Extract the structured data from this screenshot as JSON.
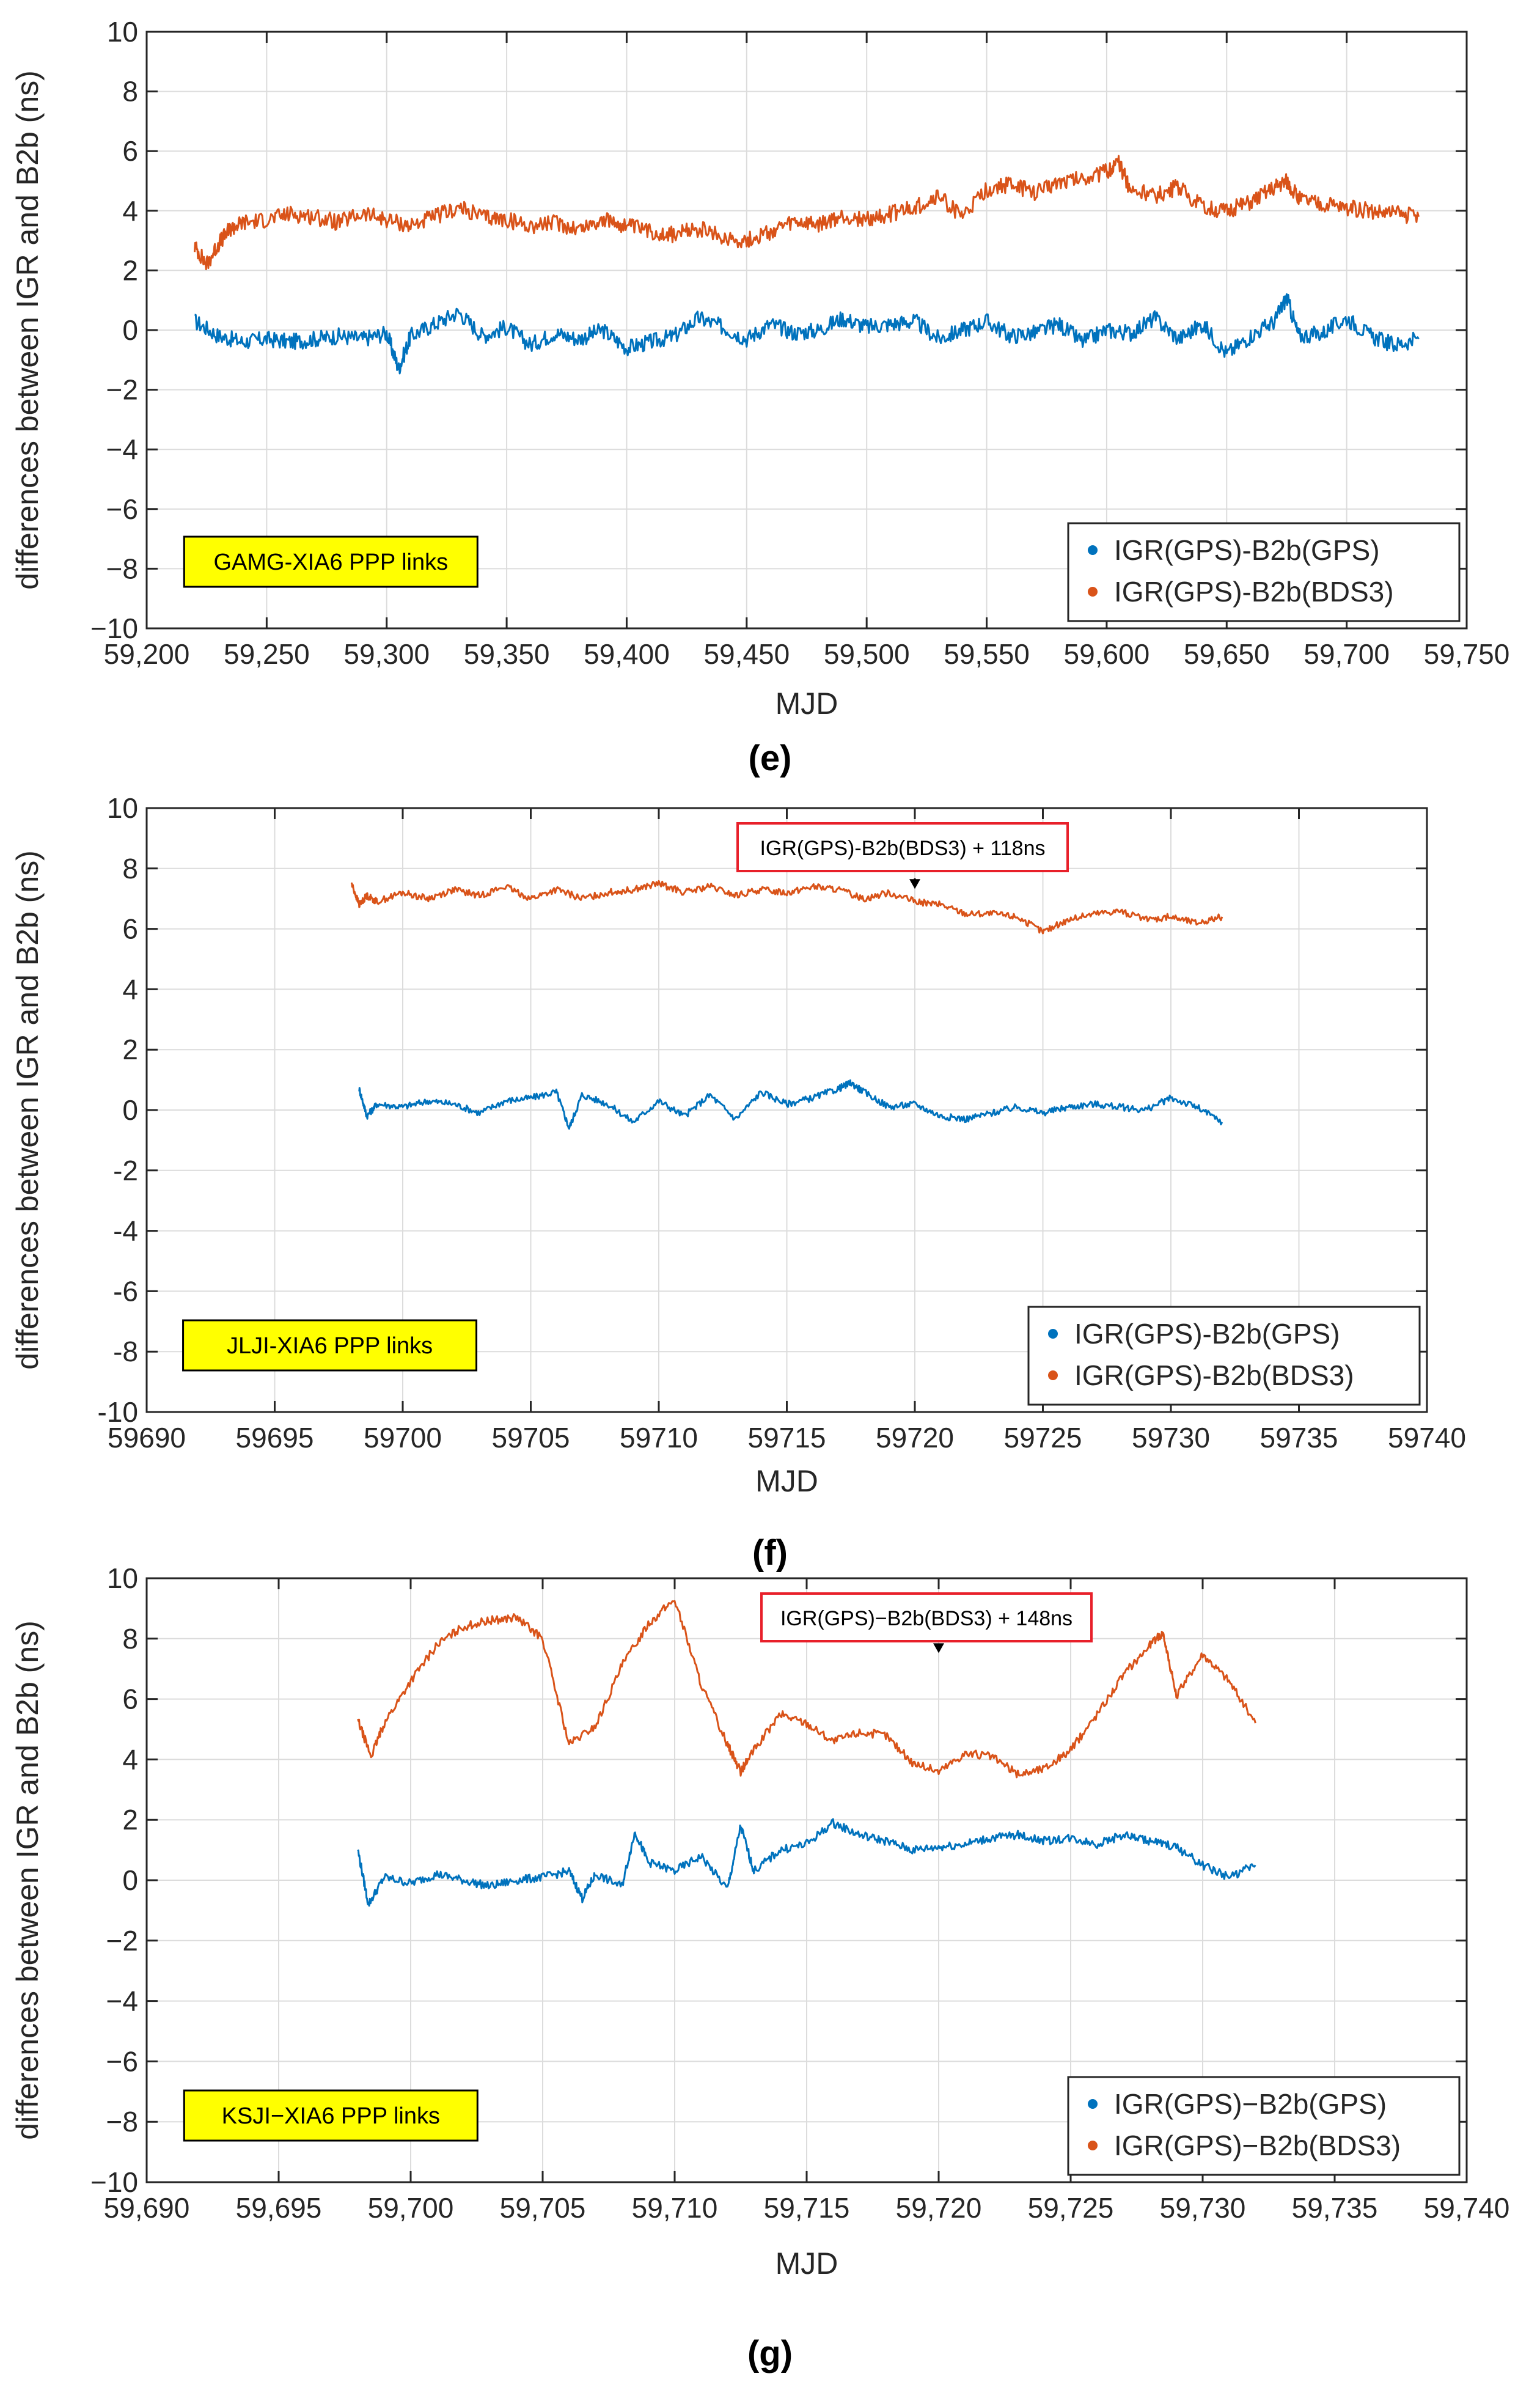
{
  "figure": {
    "caption_e": "(e)",
    "caption_f": "(f)",
    "caption_g": "(g)"
  },
  "chart_data": [
    {
      "type": "line",
      "panel": "e",
      "title": "",
      "xlabel": "MJD",
      "ylabel": "differences between IGR and B2b (ns)",
      "xlim": [
        59200,
        59750
      ],
      "ylim": [
        -10,
        10
      ],
      "xticks": [
        59200,
        59250,
        59300,
        59350,
        59400,
        59450,
        59500,
        59550,
        59600,
        59650,
        59700,
        59750
      ],
      "xtick_labels": [
        "59,200",
        "59,250",
        "59,300",
        "59,350",
        "59,400",
        "59,450",
        "59,500",
        "59,550",
        "59,600",
        "59,650",
        "59,700",
        "59,750"
      ],
      "yticks": [
        -10,
        -8,
        -6,
        -4,
        -2,
        0,
        2,
        4,
        6,
        8,
        10
      ],
      "ytick_labels": [
        "−10",
        "−8",
        "−6",
        "−4",
        "−2",
        "0",
        "2",
        "4",
        "6",
        "8",
        "10"
      ],
      "grid": true,
      "station_label": "GAMG-XIA6 PPP links",
      "annotation": null,
      "legend_position": "bottom-right",
      "series": [
        {
          "name": "IGR(GPS)-B2b(GPS)",
          "color": "#0072BD",
          "x": [
            59220,
            59230,
            59240,
            59250,
            59260,
            59270,
            59280,
            59290,
            59300,
            59305,
            59310,
            59320,
            59330,
            59340,
            59350,
            59360,
            59370,
            59380,
            59390,
            59400,
            59410,
            59420,
            59430,
            59440,
            59450,
            59460,
            59470,
            59480,
            59490,
            59500,
            59510,
            59520,
            59530,
            59540,
            59550,
            59560,
            59570,
            59580,
            59590,
            59600,
            59610,
            59620,
            59630,
            59640,
            59650,
            59660,
            59670,
            59675,
            59680,
            59690,
            59700,
            59710,
            59720,
            59730
          ],
          "values": [
            0.3,
            -0.2,
            -0.4,
            -0.3,
            -0.4,
            -0.3,
            -0.2,
            -0.3,
            -0.1,
            -1.3,
            -0.2,
            0.2,
            0.6,
            -0.2,
            0.1,
            -0.5,
            -0.1,
            -0.3,
            0.0,
            -0.6,
            -0.4,
            -0.2,
            0.4,
            0.1,
            -0.3,
            0.2,
            -0.1,
            0.0,
            0.4,
            0.1,
            0.2,
            0.3,
            -0.3,
            0.0,
            0.3,
            -0.2,
            -0.1,
            0.2,
            -0.4,
            0.0,
            -0.1,
            0.4,
            -0.3,
            0.2,
            -0.8,
            -0.2,
            0.3,
            1.1,
            -0.2,
            -0.1,
            0.4,
            -0.2,
            -0.5,
            -0.3
          ]
        },
        {
          "name": "IGR(GPS)-B2b(BDS3)",
          "color": "#D95319",
          "x": [
            59220,
            59225,
            59230,
            59235,
            59240,
            59250,
            59260,
            59270,
            59280,
            59290,
            59300,
            59310,
            59320,
            59330,
            59340,
            59350,
            59360,
            59370,
            59380,
            59390,
            59400,
            59410,
            59420,
            59430,
            59440,
            59450,
            59460,
            59470,
            59480,
            59490,
            59500,
            59510,
            59520,
            59530,
            59540,
            59550,
            59560,
            59570,
            59580,
            59590,
            59600,
            59605,
            59610,
            59620,
            59630,
            59640,
            59650,
            59660,
            59670,
            59675,
            59680,
            59690,
            59700,
            59710,
            59720,
            59730
          ],
          "values": [
            2.8,
            2.2,
            2.9,
            3.4,
            3.6,
            3.7,
            3.9,
            3.8,
            3.6,
            3.9,
            3.7,
            3.5,
            3.8,
            4.1,
            3.8,
            3.7,
            3.5,
            3.6,
            3.4,
            3.7,
            3.5,
            3.3,
            3.2,
            3.4,
            3.1,
            3.0,
            3.3,
            3.6,
            3.5,
            3.8,
            3.7,
            3.9,
            4.1,
            4.5,
            3.8,
            4.7,
            4.9,
            4.6,
            5.0,
            5.1,
            5.3,
            5.6,
            4.7,
            4.5,
            4.8,
            4.1,
            4.0,
            4.3,
            4.8,
            5.0,
            4.4,
            4.2,
            4.1,
            4.0,
            3.9,
            3.8
          ]
        }
      ]
    },
    {
      "type": "line",
      "panel": "f",
      "title": "",
      "xlabel": "MJD",
      "ylabel": "differences between IGR and B2b (ns)",
      "xlim": [
        59690,
        59740
      ],
      "ylim": [
        -10,
        10
      ],
      "xticks": [
        59690,
        59695,
        59700,
        59705,
        59710,
        59715,
        59720,
        59725,
        59730,
        59735,
        59740
      ],
      "xtick_labels": [
        "59690",
        "59695",
        "59700",
        "59705",
        "59710",
        "59715",
        "59720",
        "59725",
        "59730",
        "59735",
        "59740"
      ],
      "yticks": [
        -10,
        -8,
        -6,
        -4,
        -2,
        0,
        2,
        4,
        6,
        8,
        10
      ],
      "ytick_labels": [
        "-10",
        "-8",
        "-6",
        "-4",
        "-2",
        "0",
        "2",
        "4",
        "6",
        "8",
        "10"
      ],
      "grid": true,
      "station_label": "JLJI-XIA6 PPP links",
      "annotation": {
        "text": "IGR(GPS)-B2b(BDS3) + 118ns",
        "x": 59720,
        "y": 7.0
      },
      "legend_position": "bottom-right",
      "series": [
        {
          "name": "IGR(GPS)-B2b(GPS)",
          "color": "#0072BD",
          "x": [
            59698.3,
            59698.6,
            59699,
            59700,
            59701,
            59702,
            59703,
            59704,
            59705,
            59706,
            59706.5,
            59707,
            59708,
            59709,
            59710,
            59711,
            59712,
            59713,
            59714,
            59715,
            59716,
            59717,
            59717.5,
            59718,
            59719,
            59720,
            59721,
            59722,
            59723,
            59724,
            59725,
            59726,
            59727,
            59728,
            59729,
            59730,
            59731,
            59732
          ],
          "values": [
            0.7,
            -0.2,
            0.2,
            0.1,
            0.3,
            0.2,
            -0.1,
            0.3,
            0.4,
            0.6,
            -0.6,
            0.5,
            0.2,
            -0.4,
            0.3,
            -0.2,
            0.5,
            -0.3,
            0.6,
            0.2,
            0.4,
            0.7,
            0.9,
            0.6,
            0.1,
            0.2,
            -0.2,
            -0.3,
            -0.1,
            0.1,
            -0.1,
            0.1,
            0.2,
            0.1,
            0.0,
            0.4,
            0.1,
            -0.4
          ]
        },
        {
          "name": "IGR(GPS)-B2b(BDS3)",
          "color": "#D95319",
          "x": [
            59698,
            59698.3,
            59698.6,
            59699,
            59700,
            59701,
            59702,
            59703,
            59704,
            59705,
            59706,
            59707,
            59708,
            59709,
            59710,
            59711,
            59712,
            59713,
            59714,
            59715,
            59716,
            59717,
            59718,
            59719,
            59720,
            59721,
            59722,
            59723,
            59724,
            59725,
            59726,
            59727,
            59728,
            59729,
            59730,
            59731,
            59732
          ],
          "values": [
            7.5,
            6.8,
            7.1,
            6.9,
            7.2,
            7.0,
            7.3,
            7.1,
            7.4,
            7.0,
            7.3,
            7.0,
            7.2,
            7.3,
            7.5,
            7.2,
            7.4,
            7.1,
            7.3,
            7.2,
            7.4,
            7.3,
            7.0,
            7.2,
            6.9,
            6.8,
            6.5,
            6.5,
            6.4,
            5.9,
            6.3,
            6.5,
            6.6,
            6.3,
            6.4,
            6.2,
            6.4
          ]
        }
      ]
    },
    {
      "type": "line",
      "panel": "g",
      "title": "",
      "xlabel": "MJD",
      "ylabel": "differences between IGR and B2b (ns)",
      "xlim": [
        59690,
        59740
      ],
      "ylim": [
        -10,
        10
      ],
      "xticks": [
        59690,
        59695,
        59700,
        59705,
        59710,
        59715,
        59720,
        59725,
        59730,
        59735,
        59740
      ],
      "xtick_labels": [
        "59,690",
        "59,695",
        "59,700",
        "59,705",
        "59,710",
        "59,715",
        "59,720",
        "59,725",
        "59,730",
        "59,735",
        "59,740"
      ],
      "yticks": [
        -10,
        -8,
        -6,
        -4,
        -2,
        0,
        2,
        4,
        6,
        8,
        10
      ],
      "ytick_labels": [
        "−10",
        "−8",
        "−6",
        "−4",
        "−2",
        "0",
        "2",
        "4",
        "6",
        "8",
        "10"
      ],
      "grid": true,
      "station_label": "KSJI−XIA6 PPP links",
      "annotation": {
        "text": "IGR(GPS)−B2b(BDS3) + 148ns",
        "x": 59720,
        "y": 7.2
      },
      "legend_position": "bottom-right",
      "series": [
        {
          "name": "IGR(GPS)−B2b(GPS)",
          "color": "#0072BD",
          "x": [
            59698,
            59698.4,
            59699,
            59700,
            59701,
            59702,
            59703,
            59704,
            59705,
            59706,
            59706.5,
            59707,
            59708,
            59708.5,
            59709,
            59710,
            59711,
            59712,
            59712.5,
            59713,
            59714,
            59715,
            59716,
            59717,
            59718,
            59719,
            59720,
            59721,
            59722,
            59723,
            59724,
            59725,
            59726,
            59727,
            59728,
            59729,
            59730,
            59731,
            59732
          ],
          "values": [
            1.0,
            -0.8,
            0.1,
            -0.1,
            0.2,
            0.0,
            -0.2,
            0.0,
            0.1,
            0.3,
            -0.6,
            0.2,
            -0.2,
            1.6,
            0.6,
            0.3,
            0.8,
            -0.3,
            1.8,
            0.3,
            1.0,
            1.2,
            1.9,
            1.5,
            1.3,
            1.0,
            1.1,
            1.2,
            1.4,
            1.5,
            1.3,
            1.4,
            1.2,
            1.5,
            1.3,
            1.1,
            0.5,
            0.1,
            0.5
          ]
        },
        {
          "name": "IGR(GPS)−B2b(BDS3)",
          "color": "#D95319",
          "x": [
            59698,
            59698.5,
            59699,
            59700,
            59701,
            59702,
            59703,
            59704,
            59705,
            59706,
            59707,
            59708,
            59709,
            59710,
            59711,
            59712,
            59712.5,
            59713,
            59714,
            59715,
            59716,
            59717,
            59718,
            59719,
            59720,
            59721,
            59722,
            59723,
            59724,
            59725,
            59726,
            59727,
            59728,
            59728.5,
            59729,
            59730,
            59731,
            59732
          ],
          "values": [
            5.3,
            4.1,
            5.2,
            6.6,
            7.8,
            8.4,
            8.6,
            8.7,
            8.0,
            4.5,
            5.1,
            7.1,
            8.5,
            9.3,
            6.5,
            4.5,
            3.6,
            4.3,
            5.5,
            5.2,
            4.6,
            4.9,
            4.8,
            3.9,
            3.6,
            4.2,
            4.1,
            3.5,
            3.7,
            4.3,
            5.5,
            6.8,
            7.8,
            8.2,
            6.1,
            7.5,
            6.6,
            5.2
          ]
        }
      ]
    }
  ]
}
